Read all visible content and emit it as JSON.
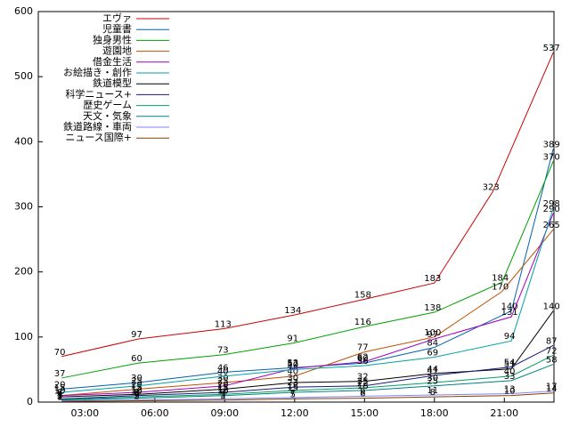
{
  "chart_data": {
    "type": "line",
    "xlim": [
      1,
      23.13
    ],
    "ylim": [
      0,
      600
    ],
    "xticks": [
      {
        "value": 3,
        "label": "03:00"
      },
      {
        "value": 6,
        "label": "06:00"
      },
      {
        "value": 9,
        "label": "09:00"
      },
      {
        "value": 12,
        "label": "12:00"
      },
      {
        "value": 15,
        "label": "15:00"
      },
      {
        "value": 18,
        "label": "18:00"
      },
      {
        "value": 21,
        "label": "21:00"
      }
    ],
    "yticks": [
      0,
      100,
      200,
      300,
      400,
      500,
      600
    ],
    "legend": "top-left",
    "series": [
      {
        "name": "エヴァ",
        "color": "#cc0000",
        "x": [
          2.0,
          5.3,
          9.0,
          12.0,
          15.0,
          18.0,
          20.5,
          23.1
        ],
        "values": [
          70,
          97,
          113,
          134,
          158,
          183,
          323,
          537
        ]
      },
      {
        "name": "児童書",
        "color": "#0060ad",
        "x": [
          2.0,
          5.3,
          9.0,
          12.0,
          15.0,
          18.0,
          21.3,
          23.1
        ],
        "values": [
          20,
          30,
          46,
          53,
          60,
          84,
          140,
          389
        ]
      },
      {
        "name": "独身男性",
        "color": "#00a000",
        "x": [
          2.0,
          5.3,
          9.0,
          12.0,
          15.0,
          18.0,
          20.9,
          23.1
        ],
        "values": [
          37,
          60,
          73,
          91,
          116,
          138,
          184,
          370
        ]
      },
      {
        "name": "遊園地",
        "color": "#c05000",
        "x": [
          2.0,
          5.3,
          9.0,
          12.0,
          15.0,
          18.0,
          20.9,
          23.1
        ],
        "values": [
          10,
          20,
          30,
          40,
          77,
          100,
          170,
          265
        ]
      },
      {
        "name": "借金生活",
        "color": "#a000c0",
        "x": [
          2.0,
          5.3,
          9.0,
          12.0,
          15.0,
          18.0,
          21.3,
          23.1
        ],
        "values": [
          10,
          15,
          25,
          52,
          62,
          97,
          131,
          290
        ]
      },
      {
        "name": "お絵描き・創作",
        "color": "#00a0a0",
        "x": [
          2.0,
          5.3,
          9.0,
          12.0,
          15.0,
          18.0,
          21.3,
          23.1
        ],
        "values": [
          15,
          25,
          40,
          50,
          56,
          69,
          94,
          298
        ]
      },
      {
        "name": "鉄道模型",
        "color": "#000000",
        "x": [
          2.0,
          5.3,
          9.0,
          12.0,
          15.0,
          18.0,
          21.3,
          23.1
        ],
        "values": [
          8,
          12,
          20,
          30,
          32,
          44,
          51,
          140
        ]
      },
      {
        "name": "科学ニュース+",
        "color": "#1a1a80",
        "x": [
          2.0,
          5.3,
          9.0,
          12.0,
          15.0,
          18.0,
          21.3,
          23.1
        ],
        "values": [
          5,
          10,
          15,
          23,
          25,
          41,
          54,
          87
        ]
      },
      {
        "name": "歴史ゲーム",
        "color": "#00a060",
        "x": [
          2.0,
          5.3,
          9.0,
          12.0,
          15.0,
          18.0,
          21.3,
          23.1
        ],
        "values": [
          4,
          8,
          12,
          18,
          22,
          30,
          40,
          72
        ]
      },
      {
        "name": "天文・気象",
        "color": "#008080",
        "x": [
          2.0,
          5.3,
          9.0,
          12.0,
          15.0,
          18.0,
          21.3,
          23.1
        ],
        "values": [
          3,
          6,
          10,
          15,
          18,
          25,
          33,
          58
        ]
      },
      {
        "name": "鉄道路線・車両",
        "color": "#8080ff",
        "x": [
          2.0,
          5.3,
          9.0,
          12.0,
          15.0,
          18.0,
          21.3,
          23.1
        ],
        "values": [
          2,
          3,
          5,
          7,
          9,
          11,
          13,
          17
        ]
      },
      {
        "name": "ニュース国際+",
        "color": "#804000",
        "x": [
          2.0,
          5.3,
          9.0,
          12.0,
          15.0,
          18.0,
          21.3,
          23.1
        ],
        "values": [
          1,
          2,
          3,
          5,
          6,
          8,
          10,
          14
        ]
      }
    ]
  }
}
